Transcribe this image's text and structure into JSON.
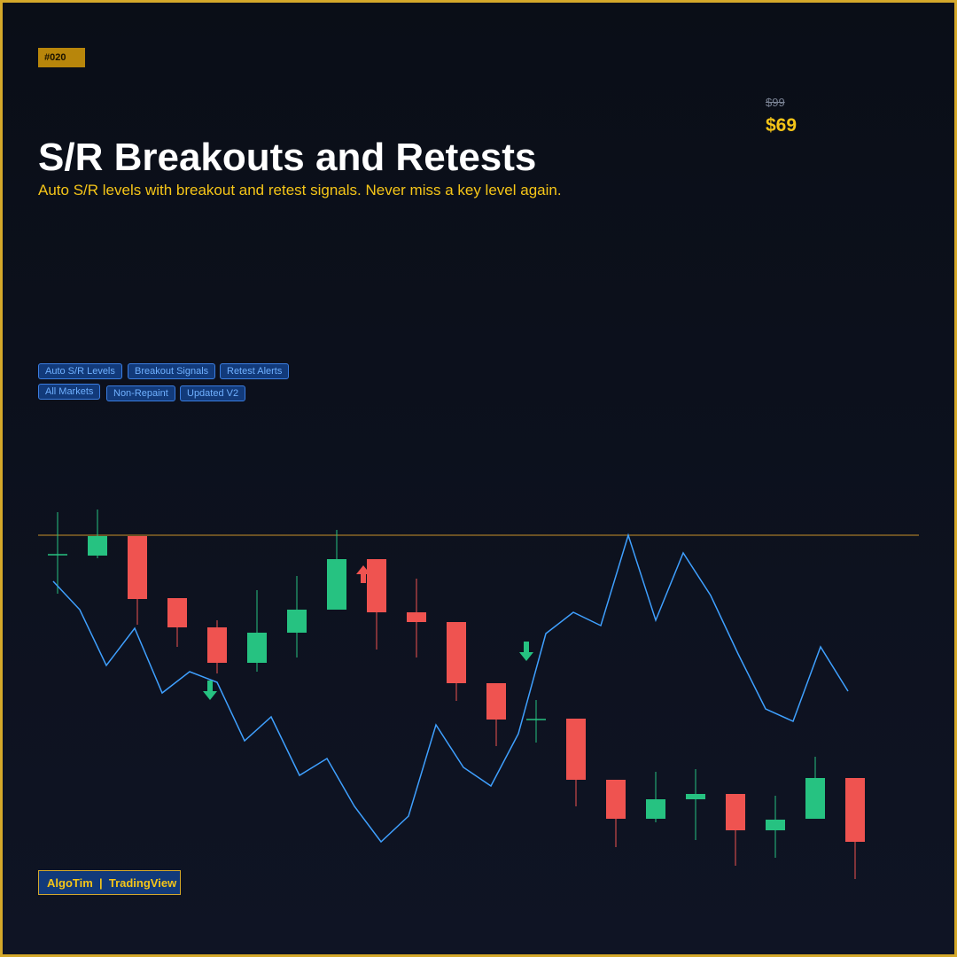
{
  "badge": "#020",
  "price": {
    "old": "$99",
    "new": "$69"
  },
  "title": "S/R Breakouts and Retests",
  "subtitle": "Auto S/R levels with breakout and retest signals. Never miss a key level again.",
  "tags": [
    "Auto S/R Levels",
    "Breakout Signals",
    "Retest Alerts",
    "All Markets",
    "Non-Repaint",
    "Updated V2"
  ],
  "footer": "AlgoTim  |  TradingView"
}
